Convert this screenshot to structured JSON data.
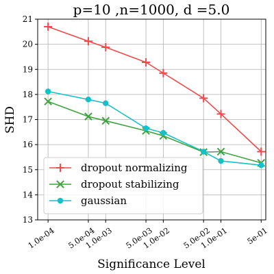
{
  "chart_data": {
    "type": "line",
    "title": "p=10 ,n=1000, d =5.0",
    "xlabel": "Significance Level",
    "ylabel": "SHD",
    "ylim": [
      13,
      21
    ],
    "yticks": [
      13,
      14,
      15,
      16,
      17,
      18,
      19,
      20,
      21
    ],
    "x": [
      0.0001,
      0.0005,
      0.001,
      0.005,
      0.01,
      0.05,
      0.1,
      0.5
    ],
    "x_tick_labels": [
      "1.0e-04",
      "5.0e-04",
      "1.0e-03",
      "5.0e-03",
      "1.0e-02",
      "5.0e-02",
      "1.0e-01",
      "5e-01"
    ],
    "x_scale": "log",
    "grid": true,
    "legend_position": "lower-left",
    "series": [
      {
        "name": "dropout normalizing",
        "color": "#f04a4a",
        "marker": "plus",
        "values": [
          20.7,
          20.12,
          19.88,
          19.28,
          18.85,
          17.85,
          17.22,
          15.72
        ]
      },
      {
        "name": "dropout stabilizing",
        "color": "#3fa23f",
        "marker": "x",
        "values": [
          17.72,
          17.12,
          16.95,
          16.55,
          16.35,
          15.7,
          15.72,
          15.27
        ]
      },
      {
        "name": "gaussian",
        "color": "#17bfc9",
        "marker": "circle",
        "values": [
          18.12,
          17.8,
          17.65,
          16.65,
          16.47,
          15.72,
          15.35,
          15.18
        ]
      }
    ]
  }
}
